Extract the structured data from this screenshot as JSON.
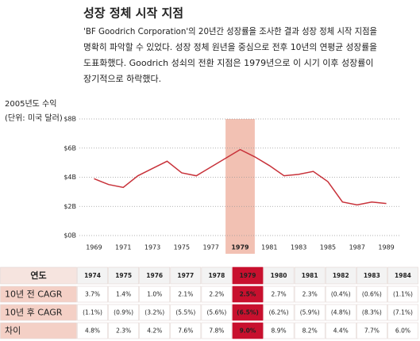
{
  "chart_data": {
    "type": "line",
    "title": "성장 정체 시작 지점",
    "description": [
      "'BF Goodrich Corporation'의 20년간 성장률을 조사한 결과 성장 정체 시작 지점을",
      "명확히 파악할 수 있었다. 성장 정체 원년을 중심으로 전후 10년의 연평균 성장률을",
      "도표화했다. Goodrich 성쇠의 전환 지점은 1979년으로 이 시기 이후 성장률이",
      "장기적으로 하락했다."
    ],
    "y_label": [
      "2005년도 수익",
      "(단위: 미국 달러)"
    ],
    "x": [
      1969,
      1970,
      1971,
      1972,
      1973,
      1974,
      1975,
      1976,
      1977,
      1978,
      1979,
      1980,
      1981,
      1982,
      1983,
      1984,
      1985,
      1986,
      1987,
      1988,
      1989
    ],
    "values": [
      3.9,
      3.5,
      3.3,
      4.1,
      4.6,
      5.1,
      4.3,
      4.1,
      4.7,
      5.3,
      5.9,
      5.4,
      4.8,
      4.1,
      4.2,
      4.4,
      3.7,
      2.3,
      2.1,
      2.3,
      2.2
    ],
    "color": "#c8323a",
    "highlight_x": 1979,
    "highlight_color": "#f2c1b3",
    "xlim": [
      1968,
      1990
    ],
    "xticks": [
      1969,
      1971,
      1973,
      1975,
      1977,
      1979,
      1981,
      1983,
      1985,
      1987,
      1989
    ],
    "ylim": [
      0,
      8
    ],
    "yticks": [
      {
        "value": 0,
        "label": "$0B"
      },
      {
        "value": 2,
        "label": "$2B"
      },
      {
        "value": 4,
        "label": "$4B"
      },
      {
        "value": 6,
        "label": "$6B"
      },
      {
        "value": 8,
        "label": "$8B"
      }
    ],
    "grid": true
  },
  "table": {
    "header": [
      "연도",
      "1974",
      "1975",
      "1976",
      "1977",
      "1978",
      "1979",
      "1980",
      "1981",
      "1982",
      "1983",
      "1984"
    ],
    "rows": [
      [
        "10년 전 CAGR",
        "3.7%",
        "1.4%",
        "1.0%",
        "2.1%",
        "2.2%",
        "2.5%",
        "2.7%",
        "2.3%",
        "(0.4%)",
        "(0.6%)",
        "(1.1%)"
      ],
      [
        "10년 후 CAGR",
        "(1.1%)",
        "(0.9%)",
        "(3.2%)",
        "(5.5%)",
        "(5.6%)",
        "(6.5%)",
        "(6.2%)",
        "(5.9%)",
        "(4.8%)",
        "(8.3%)",
        "(7.1%)"
      ],
      [
        "차이",
        "4.8%",
        "2.3%",
        "4.2%",
        "7.6%",
        "7.8%",
        "9.0%",
        "8.9%",
        "8.2%",
        "4.4%",
        "7.7%",
        "6.0%"
      ]
    ]
  }
}
